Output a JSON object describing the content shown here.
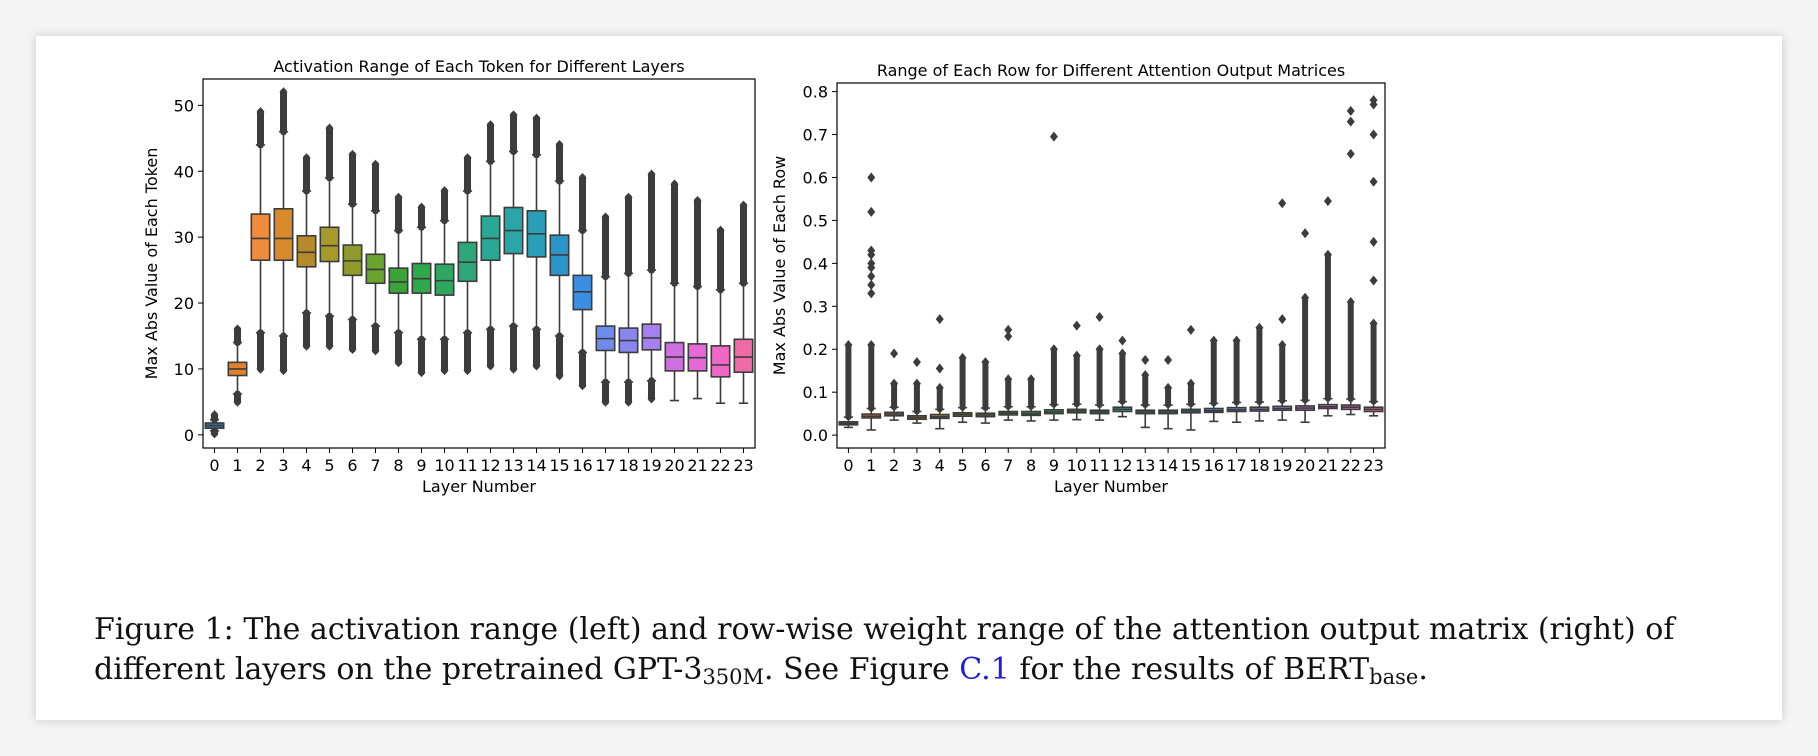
{
  "chart_data": [
    {
      "type": "box",
      "title": "Activation Range of Each Token for Different Layers",
      "xlabel": "Layer Number",
      "ylabel": "Max Abs Value of Each Token",
      "ylim": [
        -2,
        54
      ],
      "yticks": [
        0,
        10,
        20,
        30,
        40,
        50
      ],
      "categories": [
        "0",
        "1",
        "2",
        "3",
        "4",
        "5",
        "6",
        "7",
        "8",
        "9",
        "10",
        "11",
        "12",
        "13",
        "14",
        "15",
        "16",
        "17",
        "18",
        "19",
        "20",
        "21",
        "22",
        "23"
      ],
      "colors": [
        "#3274a1",
        "#e1812c",
        "#f08a3c",
        "#d98a2a",
        "#b58a2a",
        "#a89a2a",
        "#8e9a2c",
        "#6aa32d",
        "#3aa33a",
        "#2ea84a",
        "#2ea860",
        "#2ea87a",
        "#2aa896",
        "#2aa6a8",
        "#2a9fb8",
        "#2a95c8",
        "#3b8ee0",
        "#6e8cf0",
        "#8a86f0",
        "#a680ee",
        "#d070e0",
        "#e56ad8",
        "#ee68c8",
        "#f06aa8"
      ],
      "boxes": [
        {
          "q1": 1.0,
          "median": 1.4,
          "q3": 1.8,
          "wlo": 0.6,
          "whi": 2.3,
          "flo": 0.2,
          "fhi": 3.0
        },
        {
          "q1": 9.0,
          "median": 10.0,
          "q3": 11.0,
          "wlo": 6.2,
          "whi": 14.0,
          "flo": 5.0,
          "fhi": 16.0
        },
        {
          "q1": 26.5,
          "median": 29.8,
          "q3": 33.5,
          "wlo": 15.5,
          "whi": 44.0,
          "flo": 10.0,
          "fhi": 49.0
        },
        {
          "q1": 26.5,
          "median": 29.8,
          "q3": 34.3,
          "wlo": 15.0,
          "whi": 46.0,
          "flo": 9.8,
          "fhi": 52.0
        },
        {
          "q1": 25.5,
          "median": 27.7,
          "q3": 30.2,
          "wlo": 18.5,
          "whi": 37.0,
          "flo": 13.5,
          "fhi": 42.0
        },
        {
          "q1": 26.3,
          "median": 28.7,
          "q3": 31.5,
          "wlo": 18.0,
          "whi": 39.0,
          "flo": 13.5,
          "fhi": 46.5
        },
        {
          "q1": 24.2,
          "median": 26.4,
          "q3": 28.8,
          "wlo": 17.5,
          "whi": 35.0,
          "flo": 13.0,
          "fhi": 42.5
        },
        {
          "q1": 23.0,
          "median": 25.1,
          "q3": 27.4,
          "wlo": 16.5,
          "whi": 34.0,
          "flo": 12.8,
          "fhi": 41.0
        },
        {
          "q1": 21.5,
          "median": 23.2,
          "q3": 25.3,
          "wlo": 15.5,
          "whi": 31.0,
          "flo": 11.0,
          "fhi": 36.0
        },
        {
          "q1": 21.5,
          "median": 23.7,
          "q3": 26.0,
          "wlo": 14.5,
          "whi": 31.5,
          "flo": 9.5,
          "fhi": 34.5
        },
        {
          "q1": 21.2,
          "median": 23.4,
          "q3": 25.9,
          "wlo": 14.5,
          "whi": 32.5,
          "flo": 9.8,
          "fhi": 37.0
        },
        {
          "q1": 23.3,
          "median": 26.2,
          "q3": 29.2,
          "wlo": 15.5,
          "whi": 37.0,
          "flo": 9.8,
          "fhi": 42.0
        },
        {
          "q1": 26.5,
          "median": 29.8,
          "q3": 33.2,
          "wlo": 16.0,
          "whi": 41.5,
          "flo": 10.5,
          "fhi": 47.0
        },
        {
          "q1": 27.5,
          "median": 31.0,
          "q3": 34.5,
          "wlo": 16.5,
          "whi": 43.0,
          "flo": 10.0,
          "fhi": 48.5
        },
        {
          "q1": 27.0,
          "median": 30.5,
          "q3": 34.0,
          "wlo": 16.0,
          "whi": 42.5,
          "flo": 10.5,
          "fhi": 48.0
        },
        {
          "q1": 24.2,
          "median": 27.3,
          "q3": 30.3,
          "wlo": 15.0,
          "whi": 38.5,
          "flo": 9.0,
          "fhi": 44.0
        },
        {
          "q1": 19.0,
          "median": 21.7,
          "q3": 24.2,
          "wlo": 12.5,
          "whi": 31.0,
          "flo": 7.5,
          "fhi": 39.0
        },
        {
          "q1": 12.8,
          "median": 14.6,
          "q3": 16.5,
          "wlo": 8.0,
          "whi": 24.0,
          "flo": 5.0,
          "fhi": 33.0
        },
        {
          "q1": 12.5,
          "median": 14.3,
          "q3": 16.2,
          "wlo": 8.0,
          "whi": 24.5,
          "flo": 5.0,
          "fhi": 36.0
        },
        {
          "q1": 12.9,
          "median": 14.7,
          "q3": 16.8,
          "wlo": 8.2,
          "whi": 25.0,
          "flo": 5.5,
          "fhi": 39.5
        },
        {
          "q1": 9.7,
          "median": 11.8,
          "q3": 14.0,
          "wlo": 5.2,
          "whi": 23.0,
          "flo": 5.2,
          "fhi": 38.0
        },
        {
          "q1": 9.7,
          "median": 11.7,
          "q3": 13.8,
          "wlo": 5.5,
          "whi": 22.5,
          "flo": 5.5,
          "fhi": 35.5
        },
        {
          "q1": 8.8,
          "median": 10.6,
          "q3": 13.5,
          "wlo": 4.8,
          "whi": 22.0,
          "flo": 4.8,
          "fhi": 31.0
        },
        {
          "q1": 9.5,
          "median": 11.8,
          "q3": 14.5,
          "wlo": 4.8,
          "whi": 23.0,
          "flo": 4.8,
          "fhi": 34.8
        }
      ]
    },
    {
      "type": "box",
      "title": "Range of Each Row for Different Attention Output Matrices",
      "xlabel": "Layer Number",
      "ylabel": "Max Abs Value of Each Row",
      "ylim": [
        -0.03,
        0.82
      ],
      "yticks": [
        0.0,
        0.1,
        0.2,
        0.3,
        0.4,
        0.5,
        0.6,
        0.7,
        0.8
      ],
      "ytick_labels": [
        "0.0",
        "0.1",
        "0.2",
        "0.3",
        "0.4",
        "0.5",
        "0.6",
        "0.7",
        "0.8"
      ],
      "categories": [
        "0",
        "1",
        "2",
        "3",
        "4",
        "5",
        "6",
        "7",
        "8",
        "9",
        "10",
        "11",
        "12",
        "13",
        "14",
        "15",
        "16",
        "17",
        "18",
        "19",
        "20",
        "21",
        "22",
        "23"
      ],
      "colors": [
        "#3274a1",
        "#e1812c",
        "#f08a3c",
        "#d98a2a",
        "#b58a2a",
        "#a89a2a",
        "#8e9a2c",
        "#6aa32d",
        "#3aa33a",
        "#2ea84a",
        "#2ea860",
        "#2ea87a",
        "#2aa896",
        "#2aa6a8",
        "#2a9fb8",
        "#2a95c8",
        "#3b8ee0",
        "#6e8cf0",
        "#8a86f0",
        "#a680ee",
        "#d070e0",
        "#e56ad8",
        "#ee68c8",
        "#f06aa8"
      ],
      "boxes": [
        {
          "q1": 0.024,
          "median": 0.027,
          "q3": 0.031,
          "wlo": 0.018,
          "whi": 0.042,
          "fhi": 0.21,
          "out": []
        },
        {
          "q1": 0.04,
          "median": 0.044,
          "q3": 0.049,
          "wlo": 0.012,
          "whi": 0.062,
          "fhi": 0.21,
          "out": [
            0.33,
            0.35,
            0.37,
            0.39,
            0.4,
            0.42,
            0.43,
            0.52,
            0.6
          ]
        },
        {
          "q1": 0.045,
          "median": 0.049,
          "q3": 0.053,
          "wlo": 0.035,
          "whi": 0.065,
          "fhi": 0.12,
          "out": [
            0.19
          ]
        },
        {
          "q1": 0.037,
          "median": 0.041,
          "q3": 0.045,
          "wlo": 0.028,
          "whi": 0.055,
          "fhi": 0.12,
          "out": [
            0.17
          ]
        },
        {
          "q1": 0.039,
          "median": 0.043,
          "q3": 0.048,
          "wlo": 0.015,
          "whi": 0.06,
          "fhi": 0.11,
          "out": [
            0.155,
            0.27
          ]
        },
        {
          "q1": 0.044,
          "median": 0.048,
          "q3": 0.052,
          "wlo": 0.03,
          "whi": 0.064,
          "fhi": 0.18,
          "out": []
        },
        {
          "q1": 0.043,
          "median": 0.047,
          "q3": 0.051,
          "wlo": 0.028,
          "whi": 0.063,
          "fhi": 0.17,
          "out": []
        },
        {
          "q1": 0.047,
          "median": 0.051,
          "q3": 0.055,
          "wlo": 0.035,
          "whi": 0.066,
          "fhi": 0.13,
          "out": [
            0.23,
            0.245
          ]
        },
        {
          "q1": 0.046,
          "median": 0.05,
          "q3": 0.055,
          "wlo": 0.033,
          "whi": 0.066,
          "fhi": 0.13,
          "out": []
        },
        {
          "q1": 0.05,
          "median": 0.054,
          "q3": 0.059,
          "wlo": 0.035,
          "whi": 0.071,
          "fhi": 0.2,
          "out": [
            0.695
          ]
        },
        {
          "q1": 0.052,
          "median": 0.056,
          "q3": 0.06,
          "wlo": 0.036,
          "whi": 0.072,
          "fhi": 0.185,
          "out": [
            0.255
          ]
        },
        {
          "q1": 0.05,
          "median": 0.054,
          "q3": 0.058,
          "wlo": 0.035,
          "whi": 0.07,
          "fhi": 0.2,
          "out": [
            0.275
          ]
        },
        {
          "q1": 0.055,
          "median": 0.06,
          "q3": 0.065,
          "wlo": 0.043,
          "whi": 0.078,
          "fhi": 0.19,
          "out": [
            0.22
          ]
        },
        {
          "q1": 0.05,
          "median": 0.054,
          "q3": 0.058,
          "wlo": 0.018,
          "whi": 0.07,
          "fhi": 0.14,
          "out": [
            0.175
          ]
        },
        {
          "q1": 0.05,
          "median": 0.054,
          "q3": 0.058,
          "wlo": 0.015,
          "whi": 0.07,
          "fhi": 0.11,
          "out": [
            0.175
          ]
        },
        {
          "q1": 0.052,
          "median": 0.056,
          "q3": 0.06,
          "wlo": 0.012,
          "whi": 0.072,
          "fhi": 0.12,
          "out": [
            0.245
          ]
        },
        {
          "q1": 0.053,
          "median": 0.057,
          "q3": 0.062,
          "wlo": 0.032,
          "whi": 0.074,
          "fhi": 0.22,
          "out": []
        },
        {
          "q1": 0.055,
          "median": 0.059,
          "q3": 0.064,
          "wlo": 0.03,
          "whi": 0.076,
          "fhi": 0.22,
          "out": []
        },
        {
          "q1": 0.056,
          "median": 0.06,
          "q3": 0.065,
          "wlo": 0.033,
          "whi": 0.077,
          "fhi": 0.25,
          "out": []
        },
        {
          "q1": 0.058,
          "median": 0.062,
          "q3": 0.067,
          "wlo": 0.035,
          "whi": 0.08,
          "fhi": 0.21,
          "out": [
            0.27,
            0.54
          ]
        },
        {
          "q1": 0.058,
          "median": 0.063,
          "q3": 0.068,
          "wlo": 0.03,
          "whi": 0.081,
          "fhi": 0.32,
          "out": [
            0.47
          ]
        },
        {
          "q1": 0.062,
          "median": 0.066,
          "q3": 0.071,
          "wlo": 0.045,
          "whi": 0.085,
          "fhi": 0.42,
          "out": [
            0.545
          ]
        },
        {
          "q1": 0.06,
          "median": 0.065,
          "q3": 0.07,
          "wlo": 0.048,
          "whi": 0.084,
          "fhi": 0.31,
          "out": [
            0.655,
            0.73,
            0.755
          ]
        },
        {
          "q1": 0.055,
          "median": 0.06,
          "q3": 0.065,
          "wlo": 0.045,
          "whi": 0.078,
          "fhi": 0.26,
          "out": [
            0.36,
            0.45,
            0.59,
            0.7,
            0.77,
            0.78
          ]
        }
      ]
    }
  ],
  "caption": {
    "prefix": "Figure 1:",
    "text1": "The activation range (left) and row-wise weight range of the attention output matrix (right) of different layers on the pretrained GPT-3",
    "sub1": "350M",
    "text2": ". See Figure",
    "ref": "C.1",
    "text3": "for the results of BERT",
    "sub2": "base",
    "text4": "."
  }
}
